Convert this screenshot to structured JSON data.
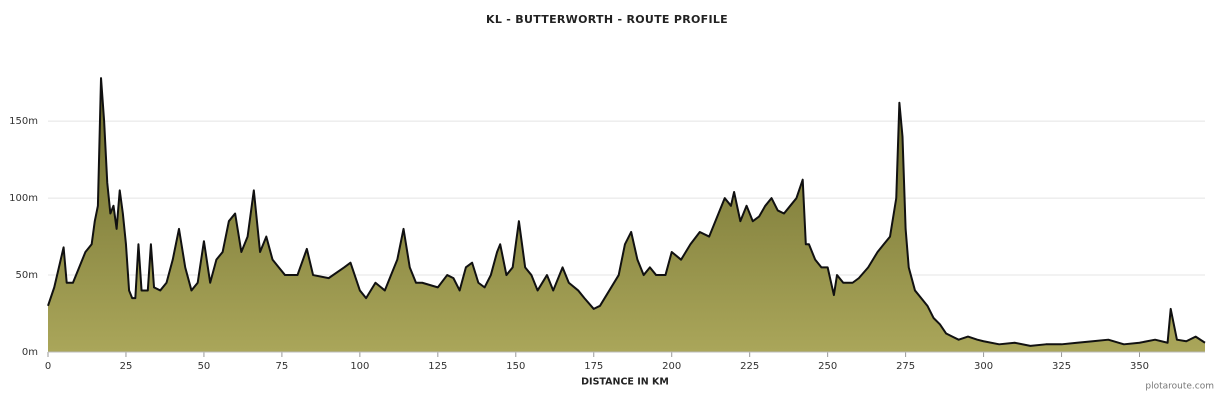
{
  "chart_data": {
    "type": "area",
    "title": "KL - BUTTERWORTH - ROUTE PROFILE",
    "x_label": "DISTANCE IN KM",
    "credit": "plotaroute.com",
    "color": "#111111",
    "fill_top": "#6b6a2c",
    "fill_bottom": "#aaa65a",
    "grid": true,
    "xlim": [
      0,
      371
    ],
    "ylim": [
      0,
      180
    ],
    "xticks": [
      0,
      25,
      50,
      75,
      100,
      125,
      150,
      175,
      200,
      225,
      250,
      275,
      300,
      325,
      350
    ],
    "yticks": [
      {
        "value": 0,
        "label": "0m"
      },
      {
        "value": 50,
        "label": "50m"
      },
      {
        "value": 100,
        "label": "100m"
      },
      {
        "value": 150,
        "label": "150m"
      }
    ],
    "x": [
      0,
      2,
      5,
      6,
      8,
      10,
      12,
      14,
      15,
      16,
      17,
      18,
      19,
      20,
      21,
      22,
      23,
      24,
      25,
      26,
      27,
      28,
      29,
      30,
      32,
      33,
      34,
      36,
      38,
      40,
      42,
      44,
      46,
      48,
      50,
      52,
      54,
      56,
      58,
      60,
      62,
      64,
      66,
      68,
      70,
      72,
      74,
      76,
      80,
      83,
      85,
      90,
      95,
      97,
      100,
      102,
      105,
      108,
      110,
      112,
      114,
      116,
      118,
      120,
      125,
      128,
      130,
      132,
      134,
      136,
      138,
      140,
      142,
      144,
      145,
      147,
      149,
      151,
      153,
      155,
      157,
      160,
      162,
      165,
      167,
      170,
      172,
      175,
      177,
      180,
      183,
      185,
      187,
      189,
      191,
      193,
      195,
      198,
      200,
      203,
      206,
      209,
      212,
      215,
      217,
      219,
      220,
      222,
      224,
      226,
      228,
      230,
      232,
      234,
      236,
      238,
      240,
      242,
      243,
      244,
      246,
      248,
      250,
      252,
      253,
      255,
      258,
      260,
      263,
      266,
      268,
      270,
      272,
      273,
      274,
      275,
      276,
      278,
      280,
      282,
      284,
      286,
      288,
      290,
      292,
      295,
      298,
      300,
      305,
      310,
      315,
      320,
      325,
      330,
      335,
      340,
      345,
      350,
      355,
      359,
      360,
      362,
      365,
      368,
      371
    ],
    "values": [
      30,
      42,
      68,
      45,
      45,
      55,
      65,
      70,
      85,
      95,
      178,
      150,
      110,
      90,
      95,
      80,
      105,
      90,
      70,
      40,
      35,
      35,
      70,
      40,
      40,
      70,
      42,
      40,
      45,
      60,
      80,
      55,
      40,
      45,
      72,
      45,
      60,
      65,
      85,
      90,
      65,
      75,
      105,
      65,
      75,
      60,
      55,
      50,
      50,
      67,
      50,
      48,
      55,
      58,
      40,
      35,
      45,
      40,
      50,
      60,
      80,
      55,
      45,
      45,
      42,
      50,
      48,
      40,
      55,
      58,
      45,
      42,
      50,
      65,
      70,
      50,
      55,
      85,
      55,
      50,
      40,
      50,
      40,
      55,
      45,
      40,
      35,
      28,
      30,
      40,
      50,
      70,
      78,
      60,
      50,
      55,
      50,
      50,
      65,
      60,
      70,
      78,
      75,
      90,
      100,
      95,
      104,
      85,
      95,
      85,
      88,
      95,
      100,
      92,
      90,
      95,
      100,
      112,
      70,
      70,
      60,
      55,
      55,
      37,
      50,
      45,
      45,
      48,
      55,
      65,
      70,
      75,
      100,
      162,
      140,
      80,
      55,
      40,
      35,
      30,
      22,
      18,
      12,
      10,
      8,
      10,
      8,
      7,
      5,
      6,
      4,
      5,
      5,
      6,
      7,
      8,
      5,
      6,
      8,
      6,
      28,
      8,
      7,
      10,
      6
    ]
  }
}
